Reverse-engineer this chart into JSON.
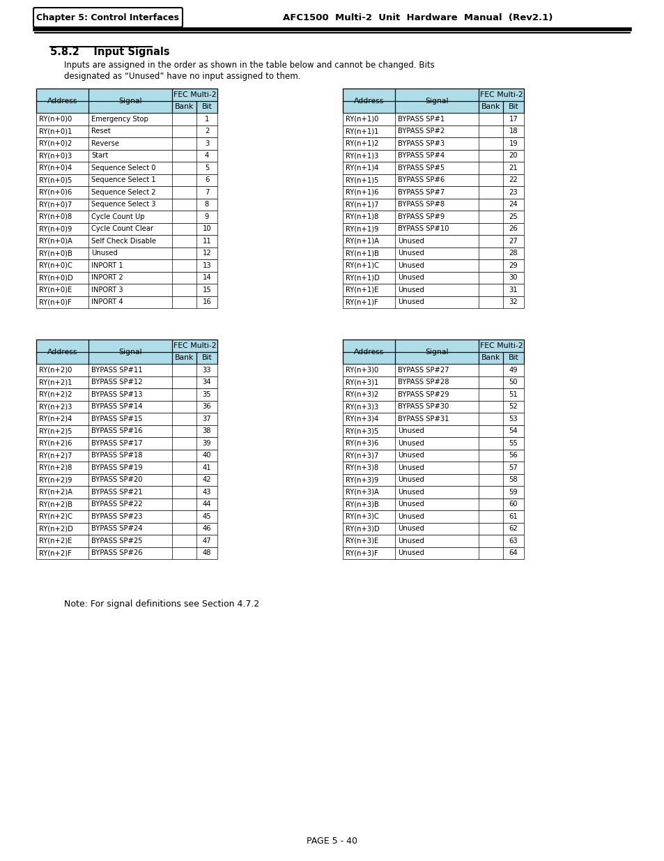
{
  "header_chapter": "Chapter 5: Control Interfaces",
  "header_right": "AFC1500  Multi-2  Unit  Hardware  Manual  (Rev2.1)",
  "section_title": "5.8.2    Input Signals",
  "intro_line1": "Inputs are assigned in the order as shown in the table below and cannot be changed. Bits",
  "intro_line2": "designated as “Unused” have no input assigned to them.",
  "note_text": "Note: For signal definitions see Section 4.7.2",
  "footer": "PAGE 5 - 40",
  "header_bg": "#aedce8",
  "table1_rows": [
    [
      "RY(n+0)0",
      "Emergency Stop",
      "",
      "1"
    ],
    [
      "RY(n+0)1",
      "Reset",
      "",
      "2"
    ],
    [
      "RY(n+0)2",
      "Reverse",
      "",
      "3"
    ],
    [
      "RY(n+0)3",
      "Start",
      "",
      "4"
    ],
    [
      "RY(n+0)4",
      "Sequence Select 0",
      "",
      "5"
    ],
    [
      "RY(n+0)5",
      "Sequence Select 1",
      "",
      "6"
    ],
    [
      "RY(n+0)6",
      "Sequence Select 2",
      "",
      "7"
    ],
    [
      "RY(n+0)7",
      "Sequence Select 3",
      "",
      "8"
    ],
    [
      "RY(n+0)8",
      "Cycle Count Up",
      "",
      "9"
    ],
    [
      "RY(n+0)9",
      "Cycle Count Clear",
      "",
      "10"
    ],
    [
      "RY(n+0)A",
      "Self Check Disable",
      "",
      "11"
    ],
    [
      "RY(n+0)B",
      "Unused",
      "",
      "12"
    ],
    [
      "RY(n+0)C",
      "INPORT 1",
      "",
      "13"
    ],
    [
      "RY(n+0)D",
      "INPORT 2",
      "",
      "14"
    ],
    [
      "RY(n+0)E",
      "INPORT 3",
      "",
      "15"
    ],
    [
      "RY(n+0)F",
      "INPORT 4",
      "",
      "16"
    ]
  ],
  "table2_rows": [
    [
      "RY(n+1)0",
      "BYPASS SP#1",
      "",
      "17"
    ],
    [
      "RY(n+1)1",
      "BYPASS SP#2",
      "",
      "18"
    ],
    [
      "RY(n+1)2",
      "BYPASS SP#3",
      "",
      "19"
    ],
    [
      "RY(n+1)3",
      "BYPASS SP#4",
      "",
      "20"
    ],
    [
      "RY(n+1)4",
      "BYPASS SP#5",
      "",
      "21"
    ],
    [
      "RY(n+1)5",
      "BYPASS SP#6",
      "",
      "22"
    ],
    [
      "RY(n+1)6",
      "BYPASS SP#7",
      "",
      "23"
    ],
    [
      "RY(n+1)7",
      "BYPASS SP#8",
      "",
      "24"
    ],
    [
      "RY(n+1)8",
      "BYPASS SP#9",
      "",
      "25"
    ],
    [
      "RY(n+1)9",
      "BYPASS SP#10",
      "",
      "26"
    ],
    [
      "RY(n+1)A",
      "Unused",
      "",
      "27"
    ],
    [
      "RY(n+1)B",
      "Unused",
      "",
      "28"
    ],
    [
      "RY(n+1)C",
      "Unused",
      "",
      "29"
    ],
    [
      "RY(n+1)D",
      "Unused",
      "",
      "30"
    ],
    [
      "RY(n+1)E",
      "Unused",
      "",
      "31"
    ],
    [
      "RY(n+1)F",
      "Unused",
      "",
      "32"
    ]
  ],
  "table3_rows": [
    [
      "RY(n+2)0",
      "BYPASS SP#11",
      "",
      "33"
    ],
    [
      "RY(n+2)1",
      "BYPASS SP#12",
      "",
      "34"
    ],
    [
      "RY(n+2)2",
      "BYPASS SP#13",
      "",
      "35"
    ],
    [
      "RY(n+2)3",
      "BYPASS SP#14",
      "",
      "36"
    ],
    [
      "RY(n+2)4",
      "BYPASS SP#15",
      "",
      "37"
    ],
    [
      "RY(n+2)5",
      "BYPASS SP#16",
      "",
      "38"
    ],
    [
      "RY(n+2)6",
      "BYPASS SP#17",
      "",
      "39"
    ],
    [
      "RY(n+2)7",
      "BYPASS SP#18",
      "",
      "40"
    ],
    [
      "RY(n+2)8",
      "BYPASS SP#19",
      "",
      "41"
    ],
    [
      "RY(n+2)9",
      "BYPASS SP#20",
      "",
      "42"
    ],
    [
      "RY(n+2)A",
      "BYPASS SP#21",
      "",
      "43"
    ],
    [
      "RY(n+2)B",
      "BYPASS SP#22",
      "",
      "44"
    ],
    [
      "RY(n+2)C",
      "BYPASS SP#23",
      "",
      "45"
    ],
    [
      "RY(n+2)D",
      "BYPASS SP#24",
      "",
      "46"
    ],
    [
      "RY(n+2)E",
      "BYPASS SP#25",
      "",
      "47"
    ],
    [
      "RY(n+2)F",
      "BYPASS SP#26",
      "",
      "48"
    ]
  ],
  "table4_rows": [
    [
      "RY(n+3)0",
      "BYPASS SP#27",
      "",
      "49"
    ],
    [
      "RY(n+3)1",
      "BYPASS SP#28",
      "",
      "50"
    ],
    [
      "RY(n+3)2",
      "BYPASS SP#29",
      "",
      "51"
    ],
    [
      "RY(n+3)3",
      "BYPASS SP#30",
      "",
      "52"
    ],
    [
      "RY(n+3)4",
      "BYPASS SP#31",
      "",
      "53"
    ],
    [
      "RY(n+3)5",
      "Unused",
      "",
      "54"
    ],
    [
      "RY(n+3)6",
      "Unused",
      "",
      "55"
    ],
    [
      "RY(n+3)7",
      "Unused",
      "",
      "56"
    ],
    [
      "RY(n+3)8",
      "Unused",
      "",
      "57"
    ],
    [
      "RY(n+3)9",
      "Unused",
      "",
      "58"
    ],
    [
      "RY(n+3)A",
      "Unused",
      "",
      "59"
    ],
    [
      "RY(n+3)B",
      "Unused",
      "",
      "60"
    ],
    [
      "RY(n+3)C",
      "Unused",
      "",
      "61"
    ],
    [
      "RY(n+3)D",
      "Unused",
      "",
      "62"
    ],
    [
      "RY(n+3)E",
      "Unused",
      "",
      "63"
    ],
    [
      "RY(n+3)F",
      "Unused",
      "",
      "64"
    ]
  ]
}
